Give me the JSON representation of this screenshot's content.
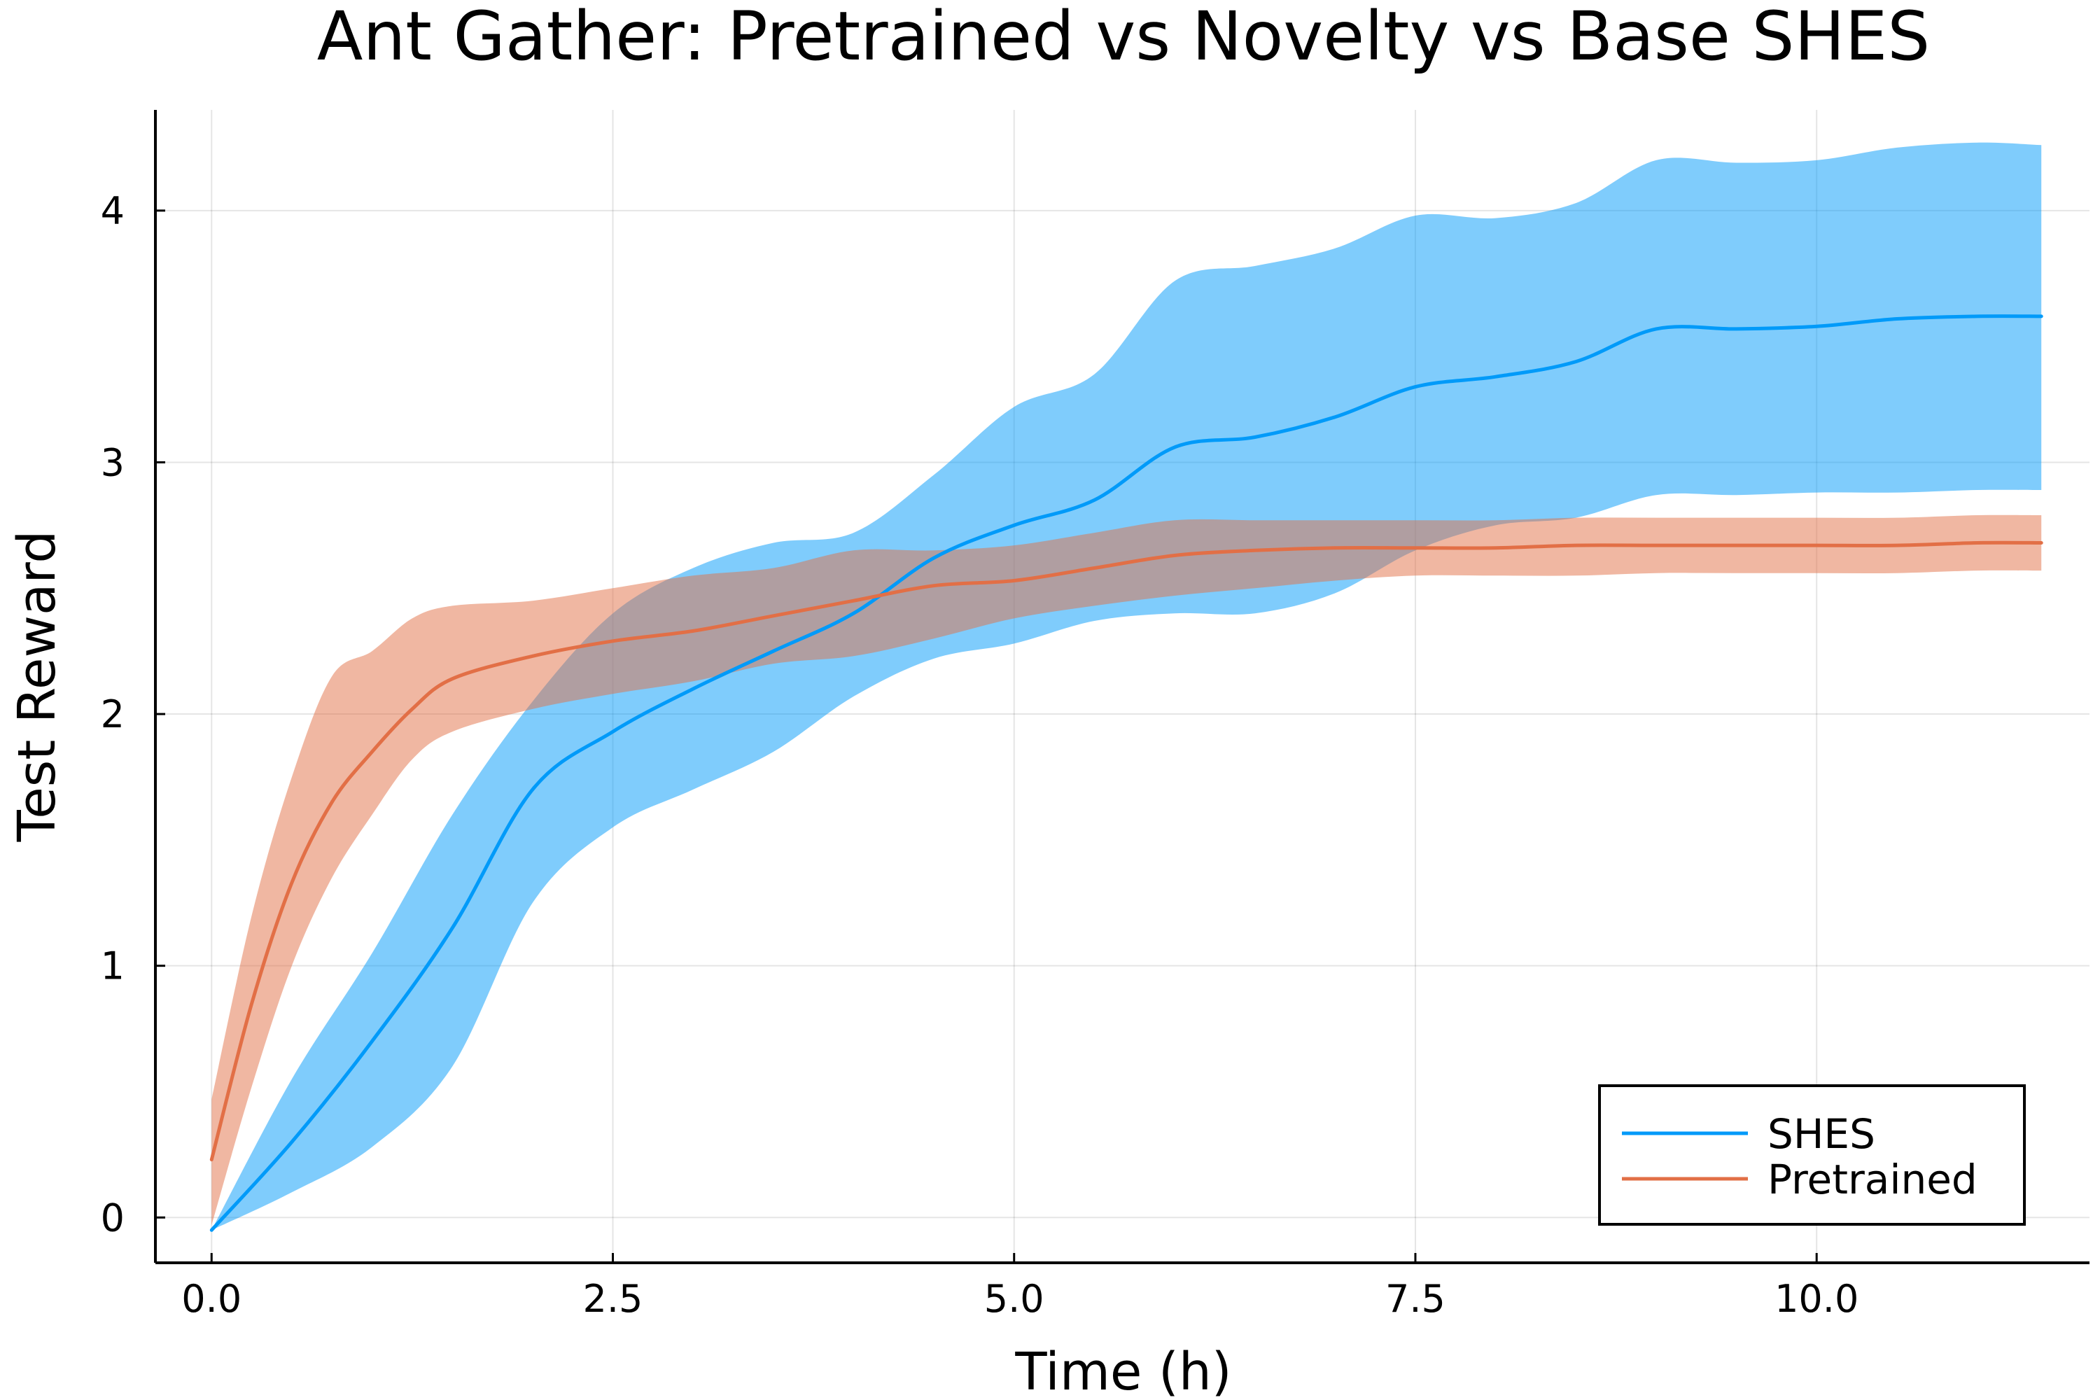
{
  "chart_data": {
    "type": "line",
    "title": "Ant Gather: Pretrained vs Novelty vs Base SHES",
    "xlabel": "Time (h)",
    "ylabel": "Test Reward",
    "xlim": [
      -0.35,
      11.7
    ],
    "ylim": [
      -0.18,
      4.4
    ],
    "x_ticks": [
      0,
      2.5,
      5,
      7.5,
      10
    ],
    "x_tick_labels": [
      "0.0",
      "2.5",
      "5.0",
      "7.5",
      "10.0"
    ],
    "y_ticks": [
      0,
      1,
      2,
      3,
      4
    ],
    "y_tick_labels": [
      "0",
      "1",
      "2",
      "3",
      "4"
    ],
    "grid": true,
    "legend_position": "bottom-right",
    "series": [
      {
        "name": "SHES",
        "color": "#009af9",
        "band_color": "#009af9",
        "band_opacity": 0.5,
        "x": [
          0.0,
          0.5,
          1.0,
          1.5,
          2.0,
          2.5,
          3.0,
          3.5,
          4.0,
          4.5,
          5.0,
          5.5,
          6.0,
          6.5,
          7.0,
          7.5,
          8.0,
          8.5,
          9.0,
          9.5,
          10.0,
          10.5,
          11.0,
          11.4
        ],
        "mean": [
          -0.05,
          0.3,
          0.7,
          1.15,
          1.7,
          1.93,
          2.1,
          2.25,
          2.4,
          2.62,
          2.75,
          2.85,
          3.06,
          3.1,
          3.18,
          3.3,
          3.34,
          3.4,
          3.53,
          3.53,
          3.54,
          3.57,
          3.58,
          3.58
        ],
        "upper": [
          -0.05,
          0.55,
          1.05,
          1.6,
          2.05,
          2.4,
          2.58,
          2.68,
          2.72,
          2.95,
          3.22,
          3.35,
          3.72,
          3.78,
          3.85,
          3.98,
          3.97,
          4.03,
          4.2,
          4.19,
          4.2,
          4.25,
          4.27,
          4.26
        ],
        "lower": [
          -0.05,
          0.1,
          0.28,
          0.6,
          1.25,
          1.55,
          1.7,
          1.85,
          2.07,
          2.22,
          2.28,
          2.37,
          2.4,
          2.4,
          2.48,
          2.65,
          2.75,
          2.78,
          2.87,
          2.87,
          2.88,
          2.88,
          2.89,
          2.89
        ]
      },
      {
        "name": "Pretrained",
        "color": "#e26f46",
        "band_color": "#e26f46",
        "band_opacity": 0.5,
        "x": [
          0.0,
          0.25,
          0.5,
          0.75,
          1.0,
          1.25,
          1.5,
          2.0,
          2.5,
          3.0,
          3.5,
          4.0,
          4.5,
          5.0,
          5.5,
          6.0,
          6.5,
          7.0,
          7.5,
          8.0,
          8.5,
          9.0,
          9.5,
          10.0,
          10.5,
          11.0,
          11.4
        ],
        "mean": [
          0.23,
          0.85,
          1.33,
          1.65,
          1.85,
          2.02,
          2.14,
          2.23,
          2.29,
          2.33,
          2.39,
          2.45,
          2.51,
          2.53,
          2.58,
          2.63,
          2.65,
          2.66,
          2.66,
          2.66,
          2.67,
          2.67,
          2.67,
          2.67,
          2.67,
          2.68,
          2.68
        ],
        "upper": [
          0.47,
          1.2,
          1.75,
          2.15,
          2.25,
          2.38,
          2.43,
          2.45,
          2.5,
          2.55,
          2.58,
          2.65,
          2.65,
          2.67,
          2.72,
          2.77,
          2.77,
          2.77,
          2.77,
          2.77,
          2.78,
          2.78,
          2.78,
          2.78,
          2.78,
          2.79,
          2.79
        ],
        "lower": [
          -0.03,
          0.52,
          1.0,
          1.35,
          1.6,
          1.82,
          1.93,
          2.02,
          2.08,
          2.13,
          2.2,
          2.23,
          2.3,
          2.38,
          2.43,
          2.47,
          2.5,
          2.53,
          2.55,
          2.55,
          2.55,
          2.56,
          2.56,
          2.56,
          2.56,
          2.57,
          2.57
        ]
      }
    ]
  }
}
